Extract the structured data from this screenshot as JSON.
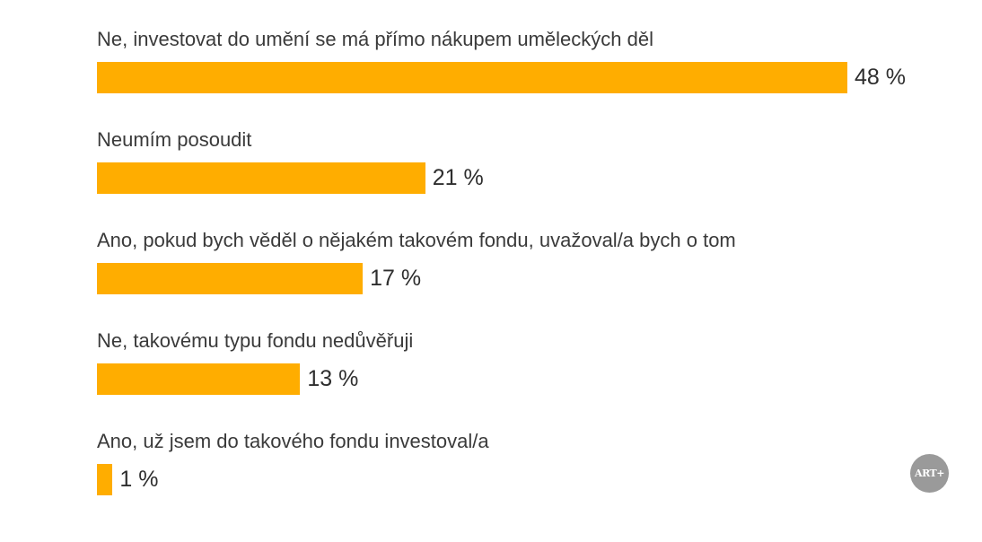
{
  "chart_data": {
    "type": "bar",
    "orientation": "horizontal",
    "categories": [
      "Ne, investovat do umění se má přímo nákupem uměleckých děl",
      "Neumím posoudit",
      "Ano, pokud bych věděl o nějakém takovém fondu, uvažoval/a bych o tom",
      "Ne, takovému typu fondu nedůvěřuji",
      "Ano, už jsem do takového fondu investoval/a"
    ],
    "values": [
      48,
      21,
      17,
      13,
      1
    ],
    "value_labels": [
      "48 %",
      "21 %",
      "17 %",
      "13 %",
      "1 %"
    ],
    "unit": "%",
    "xlim": [
      0,
      48
    ],
    "bar_color": "#FFAD00",
    "grid": false,
    "legend": "none",
    "title": "",
    "xlabel": "",
    "ylabel": ""
  },
  "logo": {
    "text": "ART+",
    "color": "#9a9a9a"
  }
}
